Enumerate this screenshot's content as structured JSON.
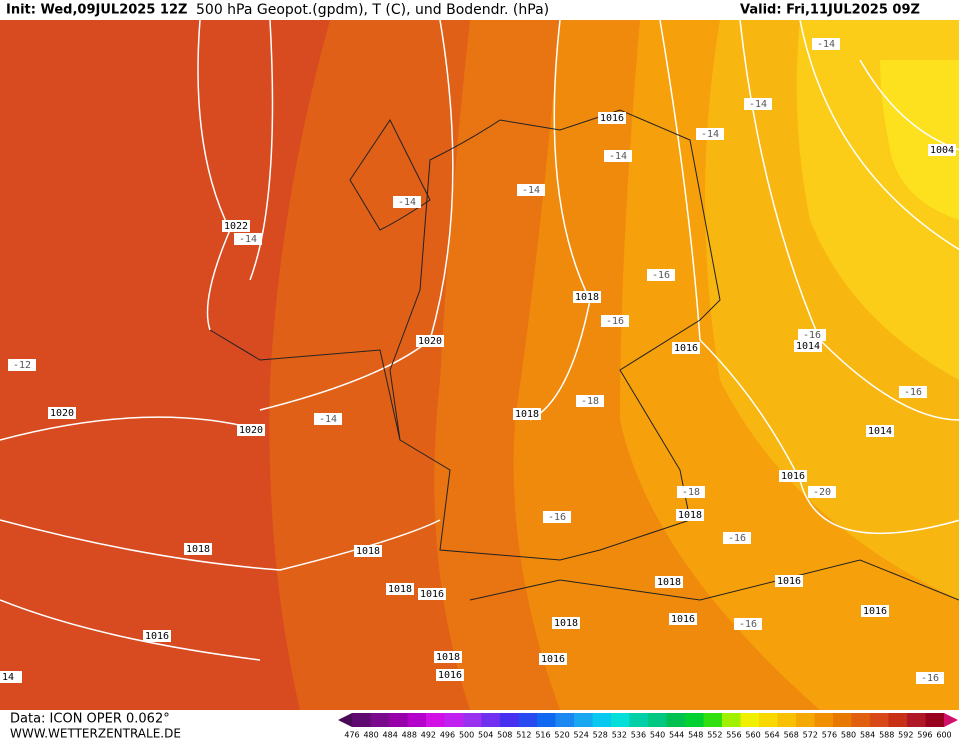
{
  "header": {
    "init": "Init: Wed,09JUL2025 12Z",
    "title": "500 hPa Geopot.(gpdm), T (C), und Bodendr. (hPa)",
    "valid": "Valid: Fri,11JUL2025 09Z"
  },
  "pressure_labels": [
    "1016",
    "1022",
    "1018",
    "1020",
    "1016",
    "1014",
    "1020",
    "1018",
    "1020",
    "1014",
    "1016",
    "1018",
    "1018",
    "1018",
    "1018",
    "1016",
    "1018",
    "1016",
    "1016",
    "1018",
    "1016",
    "1016",
    "1018",
    "1016",
    "1016",
    "1004",
    "14"
  ],
  "temperature_labels": [
    "-14",
    "-14",
    "-14",
    "-14",
    "-14",
    "-14",
    "-14",
    "-16",
    "-16",
    "-16",
    "-12",
    "-18",
    "-14",
    "-16",
    "-20",
    "-18",
    "-16",
    "-16",
    "-16",
    "-16"
  ],
  "footer": {
    "data": "Data: ICON OPER 0.062°",
    "url": "WWW.WETTERZENTRALE.DE"
  },
  "colorbar": {
    "labels": [
      "476",
      "480",
      "484",
      "488",
      "492",
      "496",
      "500",
      "504",
      "508",
      "512",
      "516",
      "520",
      "524",
      "528",
      "532",
      "536",
      "540",
      "544",
      "548",
      "552",
      "556",
      "560",
      "564",
      "568",
      "572",
      "576",
      "580",
      "584",
      "588",
      "592",
      "596",
      "600"
    ],
    "colors": [
      "#4b0a55",
      "#5e0a6e",
      "#7a0a8c",
      "#9600a8",
      "#b400c8",
      "#d010e4",
      "#c020f0",
      "#9a30f0",
      "#7030f0",
      "#4830f0",
      "#2848f0",
      "#1068f0",
      "#1a88f0",
      "#18a8f0",
      "#08c8f0",
      "#00e0d8",
      "#00d0a8",
      "#00c880",
      "#00c050",
      "#00d030",
      "#30e010",
      "#a0f000",
      "#f0f000",
      "#f8d800",
      "#f8c000",
      "#f5a800",
      "#f09000",
      "#e87800",
      "#e06010",
      "#d84818",
      "#c83018",
      "#b01828",
      "#980020",
      "#d0106a"
    ]
  }
}
